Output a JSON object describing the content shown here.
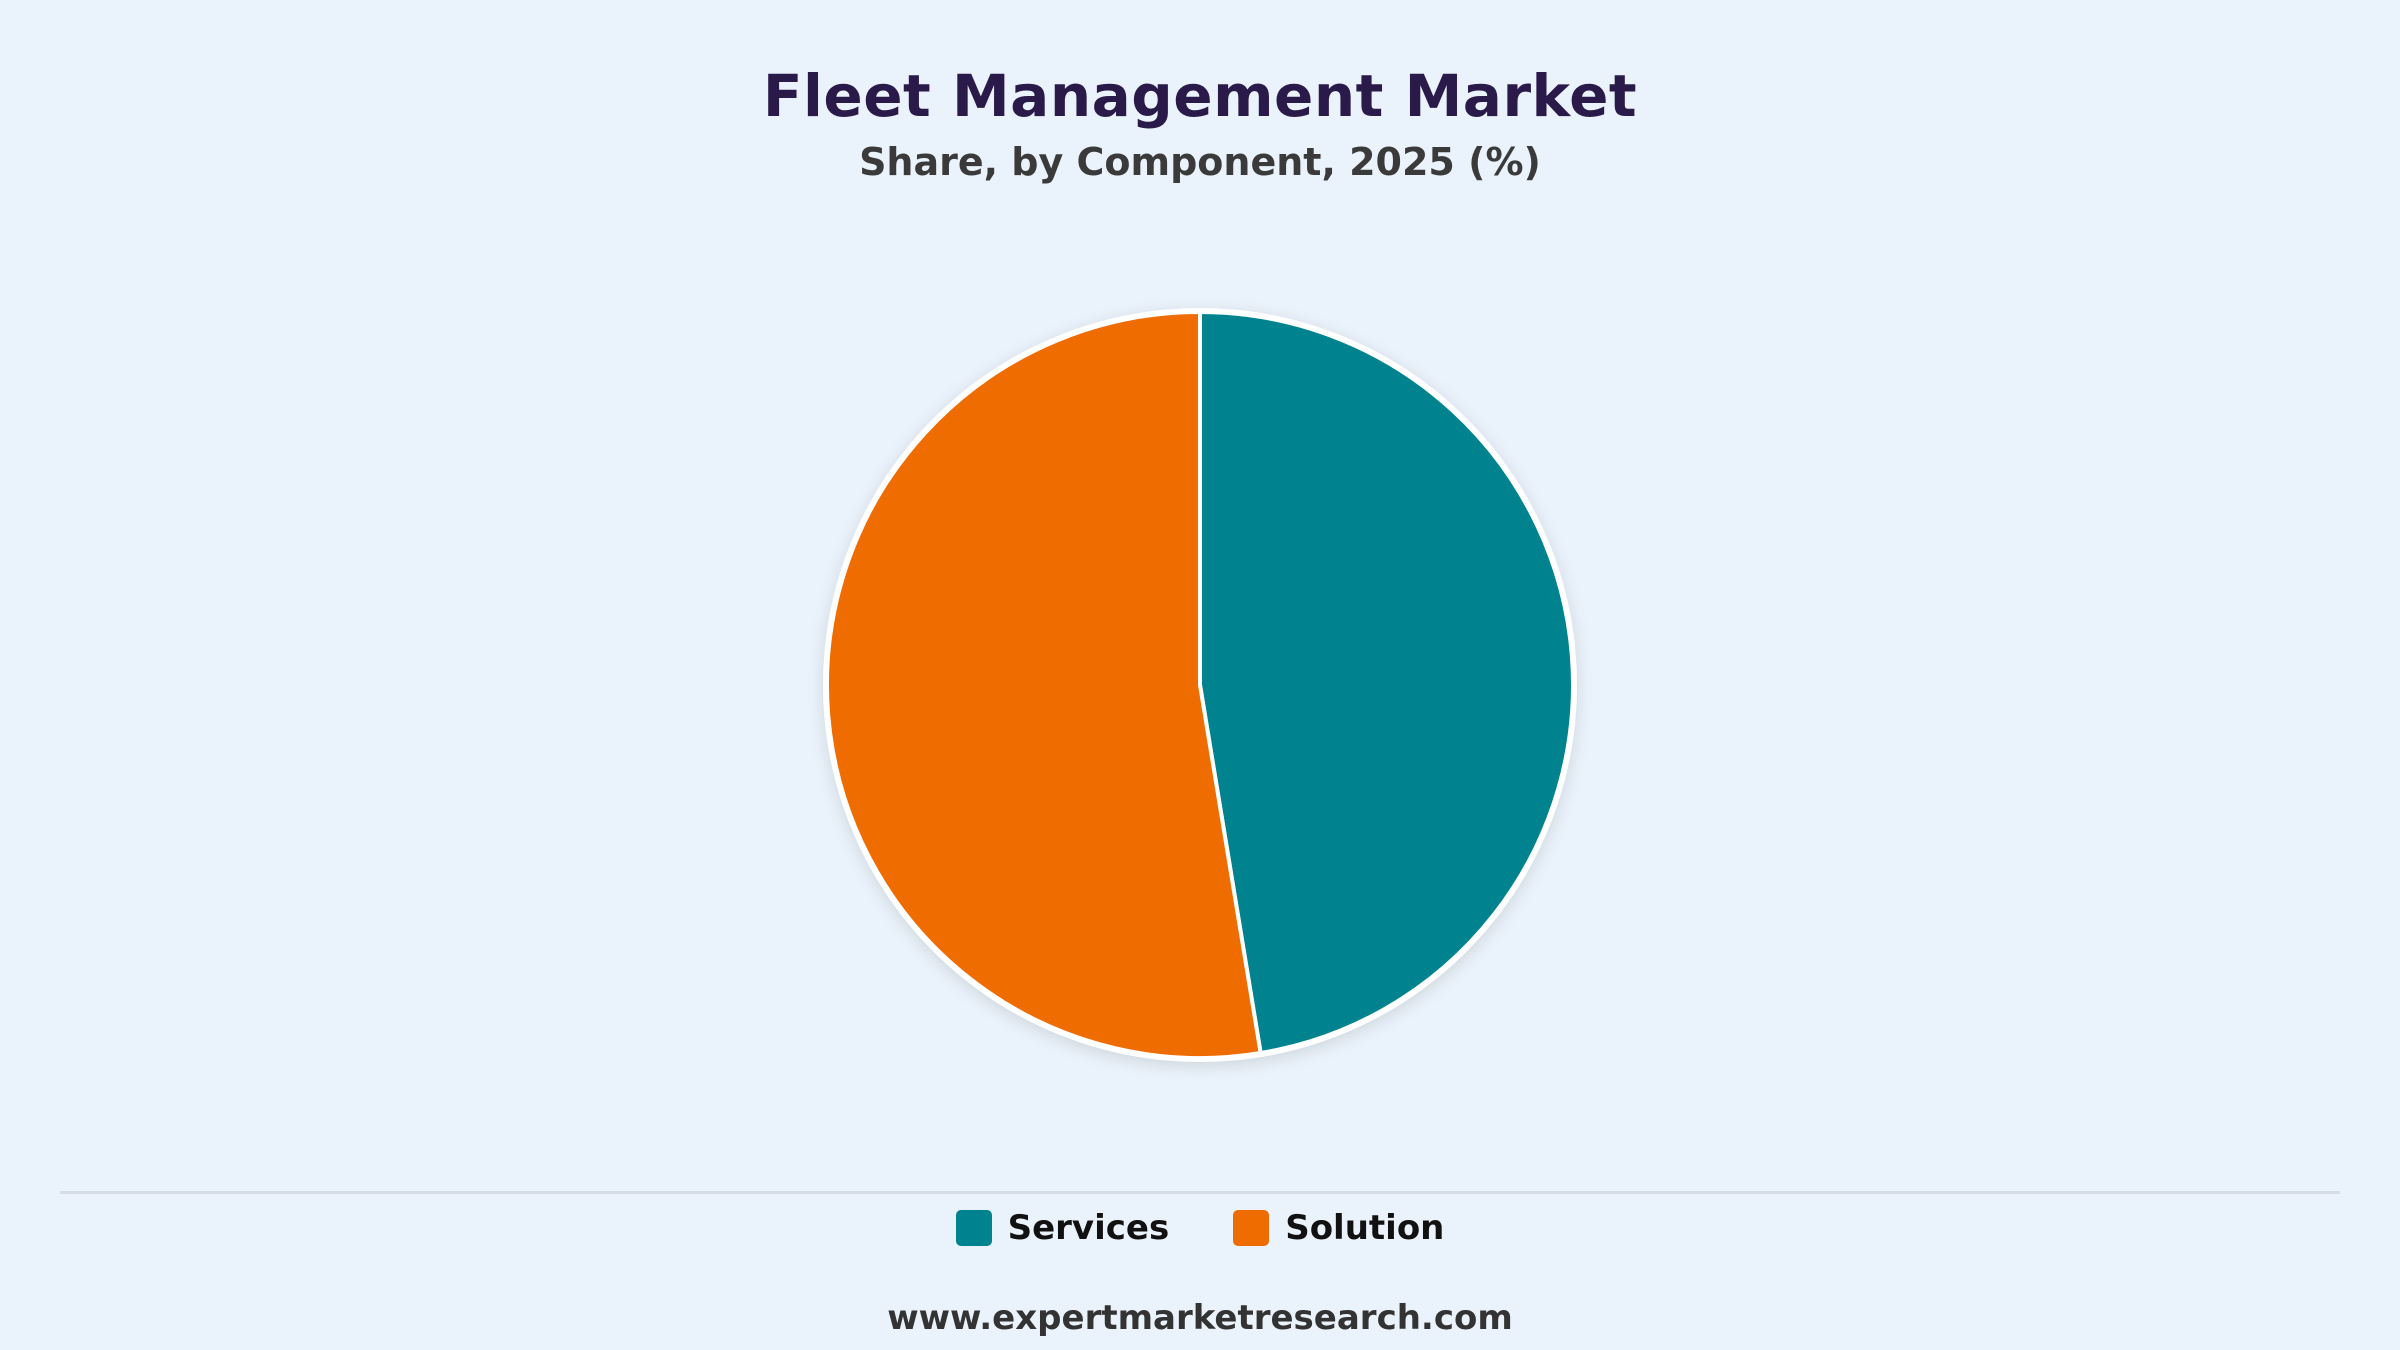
{
  "chart_data": {
    "type": "pie",
    "title": "Fleet Management Market",
    "subtitle": "Share, by Component, 2025 (%)",
    "slices": [
      {
        "name": "Services",
        "value": 47.4,
        "color": "#00838f"
      },
      {
        "name": "Solution",
        "value": 52.6,
        "color": "#ef6c00"
      }
    ],
    "legend_placement": "bottom-center"
  },
  "footer": {
    "source": "www.expertmarketresearch.com"
  },
  "colors": {
    "background": "#eaf2fb",
    "title": "#2a1a4a"
  }
}
